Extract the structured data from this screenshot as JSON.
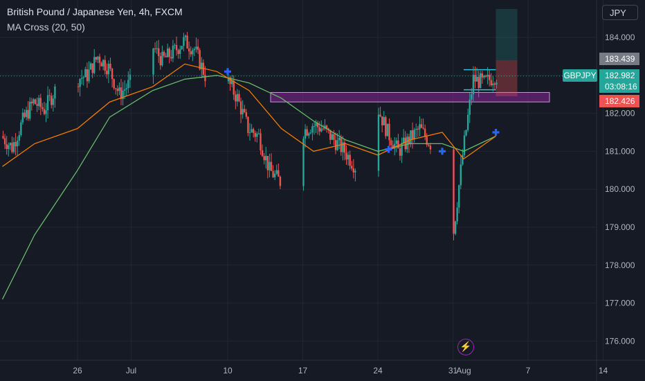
{
  "header": {
    "title": "British Pound / Japanese Yen, 4h, FXCM",
    "indicator": "MA Cross (20, 50)"
  },
  "currency_button": "JPY",
  "price_tags": {
    "upper": "183.439",
    "symbol": "GBPJPY",
    "current_price": "182.982",
    "countdown": "03:08:16",
    "lower": "182.426"
  },
  "lightning_icon": "lightning-icon",
  "colors": {
    "background": "#161a25",
    "up_candle": "#26a69a",
    "down_candle": "#ef5350",
    "ma20": "#f57c00",
    "ma50": "#66bb6a",
    "zone": "#9c27b0",
    "cross_marker": "#2962ff",
    "price_line": "#26a69a"
  },
  "chart_data": {
    "type": "candlestick",
    "title": "British Pound / Japanese Yen, 4h, FXCM",
    "y_ticks": [
      "184.000",
      "183.000",
      "182.000",
      "181.000",
      "180.000",
      "179.000",
      "178.000",
      "177.000",
      "176.000"
    ],
    "x_ticks": [
      "26",
      "Jul",
      "10",
      "17",
      "24",
      "31",
      "Aug",
      "7",
      "14"
    ],
    "ylim": [
      175.6,
      184.8
    ],
    "current_price": 182.982,
    "price_path": [
      [
        "2023-06-19",
        181.4
      ],
      [
        "2023-06-20",
        181.1
      ],
      [
        "2023-06-21",
        181.8
      ],
      [
        "2023-06-22",
        182.3
      ],
      [
        "2023-06-23",
        182.1
      ],
      [
        "2023-06-24",
        182.6
      ],
      [
        "2023-06-26",
        182.9
      ],
      [
        "2023-06-27",
        183.0
      ],
      [
        "2023-06-28",
        183.5
      ],
      [
        "2023-06-29",
        183.2
      ],
      [
        "2023-06-30",
        182.5
      ],
      [
        "2023-07-01",
        182.8
      ],
      [
        "2023-07-02",
        183.6
      ],
      [
        "2023-07-03",
        183.8
      ],
      [
        "2023-07-04",
        183.4
      ],
      [
        "2023-07-05",
        183.6
      ],
      [
        "2023-07-06",
        183.9
      ],
      [
        "2023-07-07",
        183.7
      ],
      [
        "2023-07-08",
        183.0
      ],
      [
        "2023-07-09",
        183.5
      ],
      [
        "2023-07-10",
        182.9
      ],
      [
        "2023-07-11",
        182.4
      ],
      [
        "2023-07-12",
        181.6
      ],
      [
        "2023-07-13",
        181.4
      ],
      [
        "2023-07-14",
        180.5
      ],
      [
        "2023-07-15",
        180.2
      ],
      [
        "2023-07-16",
        180.8
      ],
      [
        "2023-07-17",
        181.5
      ],
      [
        "2023-07-18",
        181.7
      ],
      [
        "2023-07-19",
        181.6
      ],
      [
        "2023-07-20",
        181.3
      ],
      [
        "2023-07-21",
        181.0
      ],
      [
        "2023-07-22",
        180.6
      ],
      [
        "2023-07-23",
        180.3
      ],
      [
        "2023-07-24",
        182.2
      ],
      [
        "2023-07-25",
        181.5
      ],
      [
        "2023-07-26",
        181.0
      ],
      [
        "2023-07-27",
        181.3
      ],
      [
        "2023-07-28",
        181.6
      ],
      [
        "2023-07-29",
        181.2
      ],
      [
        "2023-07-30",
        181.0
      ],
      [
        "2023-07-31",
        178.5
      ],
      [
        "2023-08-01",
        180.9
      ],
      [
        "2023-08-02",
        182.9
      ],
      [
        "2023-08-03",
        182.8
      ],
      [
        "2023-08-04",
        182.98
      ]
    ],
    "ma20": [
      [
        "2023-06-19",
        180.6
      ],
      [
        "2023-06-22",
        181.2
      ],
      [
        "2023-06-26",
        181.6
      ],
      [
        "2023-06-29",
        182.3
      ],
      [
        "2023-07-03",
        182.7
      ],
      [
        "2023-07-06",
        183.3
      ],
      [
        "2023-07-09",
        183.1
      ],
      [
        "2023-07-12",
        182.6
      ],
      [
        "2023-07-15",
        181.6
      ],
      [
        "2023-07-18",
        181.0
      ],
      [
        "2023-07-21",
        181.2
      ],
      [
        "2023-07-24",
        180.9
      ],
      [
        "2023-07-27",
        181.3
      ],
      [
        "2023-07-30",
        181.5
      ],
      [
        "2023-08-01",
        180.8
      ],
      [
        "2023-08-04",
        181.4
      ]
    ],
    "ma50": [
      [
        "2023-06-19",
        177.1
      ],
      [
        "2023-06-22",
        178.8
      ],
      [
        "2023-06-26",
        180.5
      ],
      [
        "2023-06-29",
        181.9
      ],
      [
        "2023-07-03",
        182.6
      ],
      [
        "2023-07-06",
        182.9
      ],
      [
        "2023-07-09",
        183.0
      ],
      [
        "2023-07-12",
        182.8
      ],
      [
        "2023-07-15",
        182.4
      ],
      [
        "2023-07-18",
        181.8
      ],
      [
        "2023-07-21",
        181.3
      ],
      [
        "2023-07-24",
        181.0
      ],
      [
        "2023-07-27",
        181.2
      ],
      [
        "2023-07-30",
        181.2
      ],
      [
        "2023-08-01",
        181.0
      ],
      [
        "2023-08-04",
        181.4
      ]
    ],
    "zone": {
      "from": "2023-07-14",
      "to": "2023-08-09",
      "high": 182.55,
      "low": 182.3
    },
    "cross_markers": [
      {
        "date": "2023-07-10",
        "value": 183.1
      },
      {
        "date": "2023-07-25",
        "value": 181.05
      },
      {
        "date": "2023-07-30",
        "value": 181.0
      },
      {
        "date": "2023-08-04",
        "value": 181.5
      }
    ],
    "consolidation": {
      "from": "2023-08-01",
      "to": "2023-08-04",
      "top": 183.15,
      "bottom": 182.62
    },
    "position": {
      "from": "2023-08-04",
      "to": "2023-08-06",
      "target": 184.75,
      "entry": 183.4,
      "stop": 182.45
    }
  }
}
